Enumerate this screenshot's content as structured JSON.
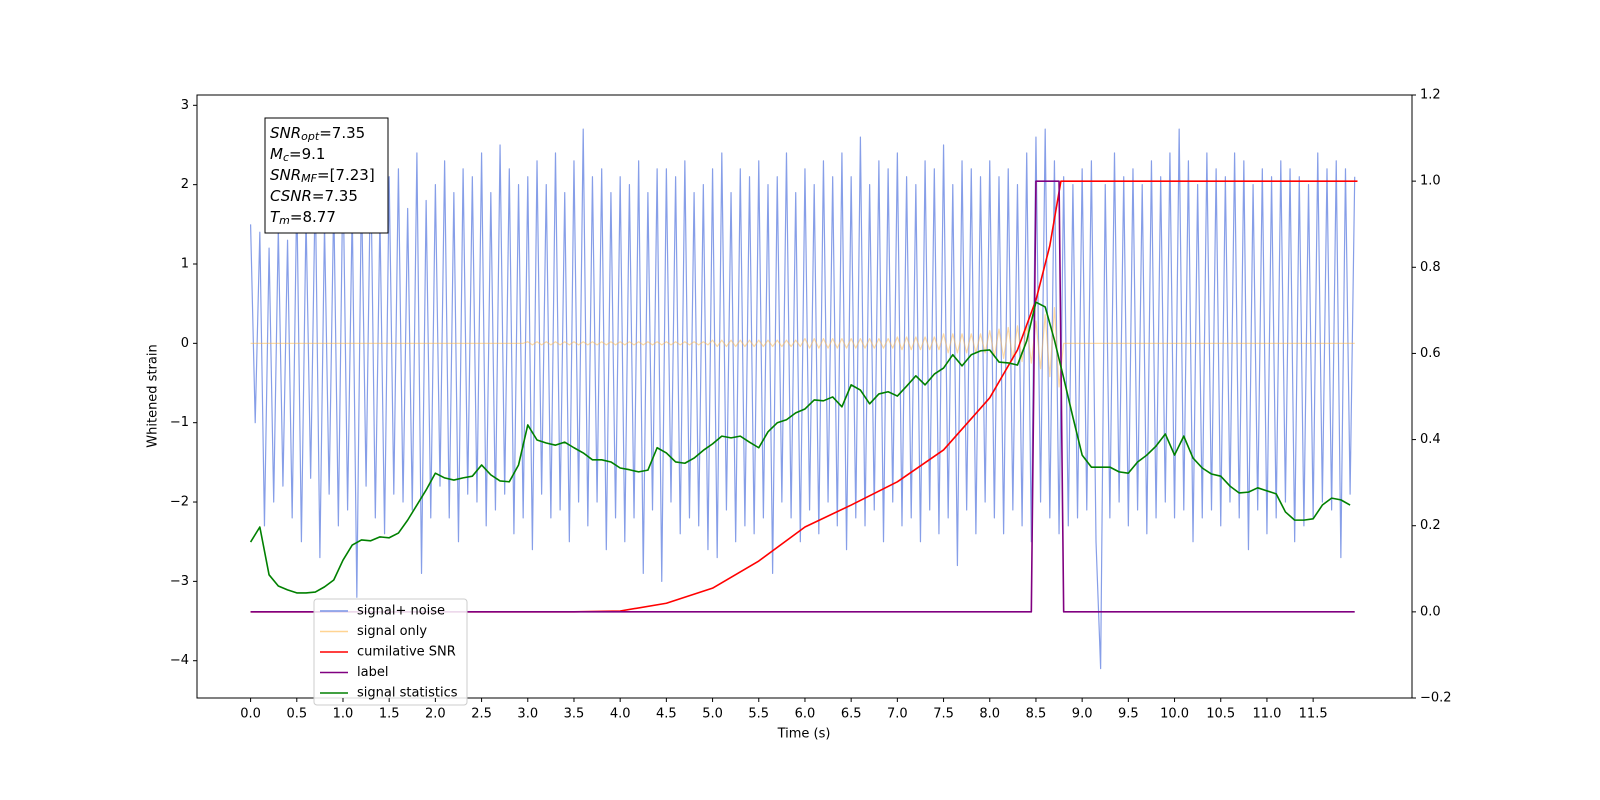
{
  "chart_data": {
    "type": "line",
    "xlabel": "Time (s)",
    "ylabel": "Whitened strain",
    "xlim": [
      -0.58,
      12.57
    ],
    "ylim": [
      -4.47,
      3.13
    ],
    "y2lim": [
      -0.2,
      1.2
    ],
    "xticks": [
      {
        "value": 0,
        "label": "0.0"
      },
      0.5,
      {
        "value": 1,
        "label": "1.0"
      },
      1.5,
      {
        "value": 2,
        "label": "2.0"
      },
      2.5,
      {
        "value": 3,
        "label": "3.0"
      },
      3.5,
      {
        "value": 4,
        "label": "4.0"
      },
      4.5,
      {
        "value": 5,
        "label": "5.0"
      },
      5.5,
      {
        "value": 6,
        "label": "6.0"
      },
      6.5,
      {
        "value": 7,
        "label": "7.0"
      },
      7.5,
      {
        "value": 8,
        "label": "8.0"
      },
      8.5,
      {
        "value": 9,
        "label": "9.0"
      },
      9.5,
      {
        "value": 10,
        "label": "10.0"
      },
      10.5,
      {
        "value": 11,
        "label": "11.0"
      },
      11.5
    ],
    "yticks": [
      {
        "value": -4,
        "label": "−4"
      },
      {
        "value": -3,
        "label": "−3"
      },
      {
        "value": -2,
        "label": "−2"
      },
      {
        "value": -1,
        "label": "−1"
      },
      0,
      1,
      2,
      3
    ],
    "y2ticks": [
      {
        "value": -0.2,
        "label": "−0.2"
      },
      {
        "value": 0,
        "label": "0.0"
      },
      0.2,
      0.4,
      0.6,
      0.8,
      {
        "value": 1,
        "label": "1.0"
      },
      1.2
    ],
    "grid": false,
    "legend_position": "lower left",
    "annotation_lines": [
      {
        "text": "SNR",
        "sub": "opt",
        "rest": "=7.35"
      },
      {
        "text": "M",
        "sub": "c",
        "rest": "=9.1"
      },
      {
        "text": "SNR",
        "sub": "MF",
        "rest": "=[7.23]"
      },
      {
        "text": "CSNR",
        "rest": "=7.35"
      },
      {
        "text": "T",
        "sub": "m",
        "rest": "=8.77"
      }
    ],
    "x": [
      0,
      0.05,
      0.1,
      0.15,
      0.2,
      0.25,
      0.3,
      0.35,
      0.4,
      0.45,
      0.5,
      0.55,
      0.6,
      0.65,
      0.7,
      0.75,
      0.8,
      0.85,
      0.9,
      0.95,
      1,
      1.05,
      1.1,
      1.15,
      1.2,
      1.25,
      1.3,
      1.35,
      1.4,
      1.45,
      1.5,
      1.55,
      1.6,
      1.65,
      1.7,
      1.75,
      1.8,
      1.85,
      1.9,
      1.95,
      2,
      2.05,
      2.1,
      2.15,
      2.2,
      2.25,
      2.3,
      2.35,
      2.4,
      2.45,
      2.5,
      2.55,
      2.6,
      2.65,
      2.7,
      2.75,
      2.8,
      2.85,
      2.9,
      2.95,
      3,
      3.05,
      3.1,
      3.15,
      3.2,
      3.25,
      3.3,
      3.35,
      3.4,
      3.45,
      3.5,
      3.55,
      3.6,
      3.65,
      3.7,
      3.75,
      3.8,
      3.85,
      3.9,
      3.95,
      4,
      4.05,
      4.1,
      4.15,
      4.2,
      4.25,
      4.3,
      4.35,
      4.4,
      4.45,
      4.5,
      4.55,
      4.6,
      4.65,
      4.7,
      4.75,
      4.8,
      4.85,
      4.9,
      4.95,
      5,
      5.05,
      5.1,
      5.15,
      5.2,
      5.25,
      5.3,
      5.35,
      5.4,
      5.45,
      5.5,
      5.55,
      5.6,
      5.65,
      5.7,
      5.75,
      5.8,
      5.85,
      5.9,
      5.95,
      6,
      6.05,
      6.1,
      6.15,
      6.2,
      6.25,
      6.3,
      6.35,
      6.4,
      6.45,
      6.5,
      6.55,
      6.6,
      6.65,
      6.7,
      6.75,
      6.8,
      6.85,
      6.9,
      6.95,
      7,
      7.05,
      7.1,
      7.15,
      7.2,
      7.25,
      7.3,
      7.35,
      7.4,
      7.45,
      7.5,
      7.55,
      7.6,
      7.65,
      7.7,
      7.75,
      7.8,
      7.85,
      7.9,
      7.95,
      8,
      8.05,
      8.1,
      8.15,
      8.2,
      8.25,
      8.3,
      8.35,
      8.4,
      8.45,
      8.5,
      8.55,
      8.6,
      8.65,
      8.7,
      8.75,
      8.8,
      8.85,
      8.9,
      8.95,
      9,
      9.05,
      9.1,
      9.15,
      9.2,
      9.25,
      9.3,
      9.35,
      9.4,
      9.45,
      9.5,
      9.55,
      9.6,
      9.65,
      9.7,
      9.75,
      9.8,
      9.85,
      9.9,
      9.95,
      10,
      10.05,
      10.1,
      10.15,
      10.2,
      10.25,
      10.3,
      10.35,
      10.4,
      10.45,
      10.5,
      10.55,
      10.6,
      10.65,
      10.7,
      10.75,
      10.8,
      10.85,
      10.9,
      10.95,
      11,
      11.05,
      11.1,
      11.15,
      11.2,
      11.25,
      11.3,
      11.35,
      11.4,
      11.45,
      11.5,
      11.55,
      11.6,
      11.65,
      11.7,
      11.75,
      11.8,
      11.85,
      11.9,
      11.95
    ],
    "series": [
      {
        "name": "signal+ noise",
        "color": "#7994e6",
        "values": [
          1.5,
          -1.0,
          1.4,
          -2.3,
          1.2,
          -2.0,
          1.45,
          -1.8,
          1.3,
          -2.2,
          1.9,
          -2.5,
          1.6,
          -1.7,
          2.0,
          -2.7,
          1.5,
          -1.9,
          1.8,
          -2.3,
          2.2,
          -2.1,
          1.7,
          -3.2,
          2.0,
          -1.8,
          2.3,
          -2.2,
          1.6,
          -2.4,
          2.1,
          -1.9,
          2.2,
          -2.0,
          1.7,
          -2.1,
          2.4,
          -2.9,
          1.8,
          -2.2,
          2.0,
          -1.8,
          2.3,
          -2.2,
          1.9,
          -2.5,
          2.2,
          -1.9,
          2.1,
          -2.0,
          2.4,
          -2.3,
          1.9,
          -2.1,
          2.5,
          -1.9,
          2.2,
          -2.4,
          2.0,
          -2.2,
          2.1,
          -2.6,
          2.3,
          -1.9,
          2.0,
          -2.2,
          2.4,
          -2.1,
          1.9,
          -2.5,
          2.3,
          -2.0,
          2.7,
          -2.3,
          2.1,
          -2.0,
          2.2,
          -2.6,
          1.9,
          -2.2,
          2.1,
          -2.5,
          2.0,
          -2.2,
          2.3,
          -2.9,
          1.9,
          -2.1,
          2.2,
          -3.0,
          2.2,
          -2.0,
          2.1,
          -2.4,
          2.3,
          -2.2,
          1.9,
          -2.3,
          2.0,
          -2.6,
          2.2,
          -2.7,
          2.4,
          -2.1,
          1.9,
          -2.5,
          2.2,
          -2.3,
          2.1,
          -2.4,
          2.3,
          -2.2,
          2.0,
          -2.9,
          2.1,
          -2.0,
          2.4,
          -2.2,
          1.9,
          -2.5,
          2.2,
          -2.1,
          2.0,
          -2.4,
          2.3,
          -2.0,
          2.1,
          -2.3,
          2.4,
          -2.6,
          2.1,
          -2.2,
          2.6,
          -2.3,
          2.0,
          -2.1,
          2.3,
          -2.5,
          2.2,
          -2.0,
          2.4,
          -2.3,
          2.1,
          -2.2,
          2.0,
          -2.5,
          2.3,
          -2.1,
          2.2,
          -2.4,
          2.5,
          -2.2,
          2.0,
          -2.8,
          2.3,
          -2.1,
          2.2,
          -2.4,
          2.1,
          -2.0,
          2.3,
          -2.2,
          2.1,
          -2.4,
          2.2,
          -2.1,
          2.0,
          -2.3,
          2.4,
          -2.5,
          2.6,
          -2.0,
          2.7,
          -2.2,
          2.3,
          -2.4,
          2.1,
          -2.3,
          2.0,
          -2.2,
          2.2,
          -2.1,
          2.3,
          -2.5,
          -4.1,
          2.0,
          -2.2,
          2.4,
          -2.0,
          2.1,
          -2.3,
          2.2,
          -2.1,
          2.0,
          -2.4,
          2.3,
          -2.2,
          2.1,
          -2.0,
          2.4,
          -2.2,
          2.7,
          -2.1,
          2.3,
          -2.5,
          2.0,
          -2.2,
          2.4,
          -2.1,
          2.2,
          -2.3,
          2.1,
          -2.0,
          2.4,
          -2.2,
          2.3,
          -2.6,
          2.0,
          -2.1,
          2.2,
          -2.4,
          2.1,
          -2.2,
          2.3,
          -2.0,
          2.2,
          -2.5,
          2.1,
          -2.3,
          2.0,
          -2.2,
          2.4,
          -2.0,
          2.2,
          -2.1,
          2.3,
          -2.7,
          2.2,
          -1.9,
          2.1
        ]
      },
      {
        "name": "signal only",
        "color": "#ffb84a",
        "values": [
          0,
          0,
          0,
          0,
          0,
          0,
          0,
          0,
          0,
          0,
          0,
          0,
          0,
          0,
          0,
          0,
          0,
          0,
          0,
          0,
          0,
          0,
          0,
          0,
          0,
          0,
          0,
          0,
          0,
          0,
          0,
          0,
          0,
          0,
          0,
          0,
          0,
          0,
          0,
          0,
          0,
          0,
          0,
          0,
          0,
          0,
          0,
          0,
          0,
          0,
          0,
          0,
          0,
          0,
          0,
          0,
          0,
          0,
          0,
          0,
          0.02,
          -0.02,
          0.02,
          -0.02,
          0.02,
          -0.02,
          0.02,
          -0.02,
          0.02,
          -0.02,
          0.02,
          -0.02,
          0.02,
          -0.02,
          0.02,
          -0.02,
          0.02,
          -0.02,
          0.02,
          -0.02,
          0.02,
          -0.02,
          0.02,
          -0.02,
          0.02,
          -0.02,
          0.02,
          -0.02,
          0.02,
          -0.02,
          0.02,
          -0.02,
          0.02,
          -0.02,
          0.02,
          -0.02,
          0.02,
          -0.02,
          0.02,
          -0.02,
          0.04,
          -0.04,
          0.04,
          -0.04,
          0.04,
          -0.04,
          0.04,
          -0.04,
          0.04,
          -0.04,
          0.04,
          -0.04,
          0.04,
          -0.04,
          0.04,
          -0.04,
          0.04,
          -0.04,
          0.04,
          -0.04,
          0.06,
          -0.06,
          0.06,
          -0.06,
          0.06,
          -0.06,
          0.06,
          -0.06,
          0.06,
          -0.06,
          0.06,
          -0.06,
          0.06,
          -0.06,
          0.06,
          -0.06,
          0.06,
          -0.06,
          0.06,
          -0.06,
          0.08,
          -0.08,
          0.08,
          -0.08,
          0.08,
          -0.08,
          0.08,
          -0.08,
          0.08,
          -0.08,
          0.12,
          -0.12,
          0.12,
          -0.12,
          0.12,
          -0.12,
          0.12,
          -0.12,
          0.12,
          -0.12,
          0.16,
          -0.17,
          0.18,
          -0.19,
          0.2,
          -0.21,
          0.22,
          -0.23,
          0.24,
          -0.25,
          0.28,
          -0.32,
          0.36,
          -0.42,
          0.45,
          -0.55,
          0,
          0,
          0,
          0,
          0,
          0,
          0,
          0,
          0,
          0,
          0,
          0,
          0,
          0,
          0,
          0,
          0,
          0,
          0,
          0,
          0,
          0,
          0,
          0,
          0,
          0,
          0,
          0,
          0,
          0,
          0,
          0,
          0,
          0,
          0,
          0,
          0,
          0,
          0,
          0,
          0,
          0,
          0,
          0,
          0,
          0,
          0,
          0,
          0,
          0,
          0,
          0,
          0,
          0,
          0,
          0,
          0,
          0,
          0,
          0,
          0,
          0,
          0,
          0
        ]
      },
      {
        "name": "cumilative SNR",
        "color": "#ff0000",
        "axis": "y2",
        "x": [
          0,
          3.5,
          4.0,
          4.5,
          5.0,
          5.5,
          6.0,
          6.5,
          7.0,
          7.5,
          8.0,
          8.3,
          8.5,
          8.65,
          8.77,
          11.98
        ],
        "values": [
          0,
          0,
          0.002,
          0.02,
          0.055,
          0.118,
          0.197,
          0.248,
          0.302,
          0.376,
          0.497,
          0.608,
          0.724,
          0.85,
          1.0,
          1.0
        ]
      },
      {
        "name": "label",
        "color": "#800080",
        "axis": "y2",
        "x": [
          0,
          8.45,
          8.5,
          8.75,
          8.8,
          11.95
        ],
        "values": [
          0,
          0,
          1,
          1,
          0,
          0
        ]
      },
      {
        "name": "signal statistics",
        "color": "#008000",
        "axis": "y2",
        "x": [
          0,
          0.1,
          0.2,
          0.3,
          0.4,
          0.5,
          0.6,
          0.7,
          0.8,
          0.9,
          1,
          1.1,
          1.2,
          1.3,
          1.4,
          1.5,
          1.6,
          1.7,
          1.8,
          1.9,
          2,
          2.1,
          2.2,
          2.3,
          2.4,
          2.5,
          2.6,
          2.7,
          2.8,
          2.9,
          3,
          3.1,
          3.2,
          3.3,
          3.4,
          3.5,
          3.6,
          3.7,
          3.8,
          3.9,
          4,
          4.1,
          4.2,
          4.3,
          4.4,
          4.5,
          4.6,
          4.7,
          4.8,
          4.9,
          5,
          5.1,
          5.2,
          5.3,
          5.4,
          5.5,
          5.6,
          5.7,
          5.8,
          5.9,
          6,
          6.1,
          6.2,
          6.3,
          6.4,
          6.5,
          6.6,
          6.7,
          6.8,
          6.9,
          7,
          7.1,
          7.2,
          7.3,
          7.4,
          7.5,
          7.6,
          7.7,
          7.8,
          7.9,
          8,
          8.1,
          8.2,
          8.3,
          8.4,
          8.5,
          8.6,
          8.7,
          8.8,
          8.9,
          9,
          9.1,
          9.2,
          9.3,
          9.4,
          9.5,
          9.6,
          9.7,
          9.8,
          9.9,
          10,
          10.1,
          10.2,
          10.3,
          10.4,
          10.5,
          10.6,
          10.7,
          10.8,
          10.9,
          11,
          11.1,
          11.2,
          11.3,
          11.4,
          11.5,
          11.6,
          11.7,
          11.8,
          11.9
        ],
        "values": [
          0.162,
          0.197,
          0.086,
          0.06,
          0.051,
          0.044,
          0.044,
          0.046,
          0.058,
          0.074,
          0.12,
          0.155,
          0.167,
          0.165,
          0.174,
          0.172,
          0.183,
          0.213,
          0.248,
          0.283,
          0.322,
          0.311,
          0.306,
          0.311,
          0.315,
          0.341,
          0.318,
          0.304,
          0.302,
          0.341,
          0.434,
          0.399,
          0.392,
          0.387,
          0.394,
          0.381,
          0.369,
          0.353,
          0.353,
          0.348,
          0.334,
          0.33,
          0.325,
          0.329,
          0.381,
          0.369,
          0.348,
          0.345,
          0.357,
          0.375,
          0.39,
          0.408,
          0.404,
          0.408,
          0.394,
          0.381,
          0.418,
          0.439,
          0.446,
          0.462,
          0.471,
          0.492,
          0.49,
          0.499,
          0.476,
          0.527,
          0.515,
          0.483,
          0.506,
          0.511,
          0.501,
          0.524,
          0.548,
          0.527,
          0.552,
          0.566,
          0.597,
          0.571,
          0.597,
          0.606,
          0.608,
          0.58,
          0.578,
          0.573,
          0.629,
          0.719,
          0.708,
          0.631,
          0.543,
          0.452,
          0.364,
          0.336,
          0.336,
          0.336,
          0.325,
          0.322,
          0.348,
          0.364,
          0.385,
          0.413,
          0.364,
          0.408,
          0.357,
          0.334,
          0.32,
          0.315,
          0.292,
          0.276,
          0.278,
          0.288,
          0.281,
          0.274,
          0.232,
          0.213,
          0.213,
          0.216,
          0.248,
          0.264,
          0.26,
          0.248
        ]
      }
    ]
  }
}
